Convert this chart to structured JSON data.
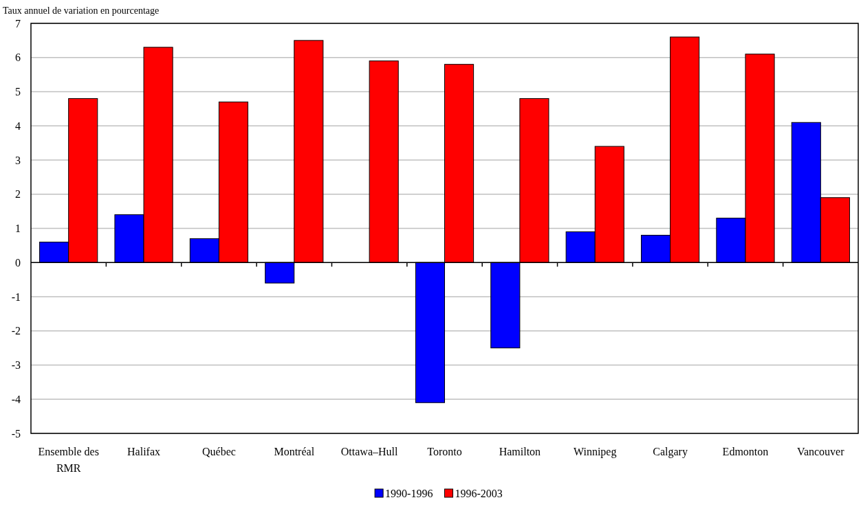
{
  "chart_data": {
    "type": "bar",
    "ylabel": "Taux annuel de variation en pourcentage",
    "categories": [
      "Ensemble des RMR",
      "Halifax",
      "Québec",
      "Montréal",
      "Ottawa–Hull",
      "Toronto",
      "Hamilton",
      "Winnipeg",
      "Calgary",
      "Edmonton",
      "Vancouver"
    ],
    "series": [
      {
        "name": "1990-1996",
        "color": "#0000ff",
        "values": [
          0.6,
          1.4,
          0.7,
          -0.6,
          0,
          -4.1,
          -2.5,
          0.9,
          0.8,
          1.3,
          4.1
        ]
      },
      {
        "name": "1996-2003",
        "color": "#ff0000",
        "values": [
          4.8,
          6.3,
          4.7,
          6.5,
          5.9,
          5.8,
          4.8,
          3.4,
          6.6,
          6.1,
          1.9
        ]
      }
    ],
    "ylim": [
      -5,
      7
    ],
    "yticks": [
      -5,
      -4,
      -3,
      -2,
      -1,
      0,
      1,
      2,
      3,
      4,
      5,
      6,
      7
    ],
    "grid": "y",
    "legend": "bottom"
  }
}
